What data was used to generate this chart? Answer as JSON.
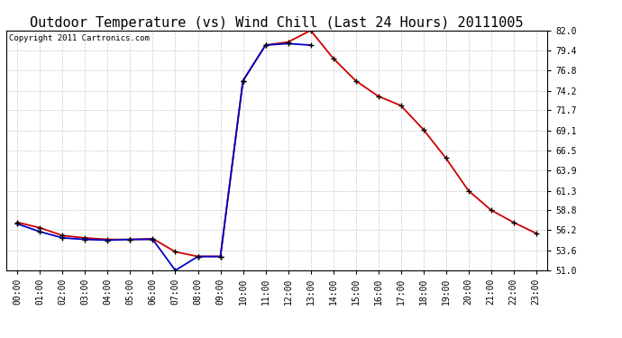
{
  "title": "Outdoor Temperature (vs) Wind Chill (Last 24 Hours) 20111005",
  "copyright": "Copyright 2011 Cartronics.com",
  "hours": [
    "00:00",
    "01:00",
    "02:00",
    "03:00",
    "04:00",
    "05:00",
    "06:00",
    "07:00",
    "08:00",
    "09:00",
    "10:00",
    "11:00",
    "12:00",
    "13:00",
    "14:00",
    "15:00",
    "16:00",
    "17:00",
    "18:00",
    "19:00",
    "20:00",
    "21:00",
    "22:00",
    "23:00"
  ],
  "temp": [
    57.2,
    56.5,
    55.5,
    55.2,
    55.0,
    55.0,
    55.1,
    53.4,
    52.8,
    52.8,
    75.5,
    80.1,
    80.5,
    82.0,
    78.4,
    75.5,
    73.5,
    72.3,
    69.2,
    65.5,
    61.3,
    58.8,
    57.2,
    55.8
  ],
  "windchill": [
    57.0,
    56.0,
    55.2,
    55.0,
    54.9,
    55.0,
    55.0,
    51.0,
    52.8,
    52.8,
    75.5,
    80.1,
    80.3,
    80.1,
    null,
    null,
    null,
    null,
    null,
    null,
    null,
    null,
    null,
    null
  ],
  "temp_color": "#cc0000",
  "windchill_color": "#0000cc",
  "bg_color": "#ffffff",
  "grid_color": "#bbbbbb",
  "ylim": [
    51.0,
    82.0
  ],
  "yticks": [
    51.0,
    53.6,
    56.2,
    58.8,
    61.3,
    63.9,
    66.5,
    69.1,
    71.7,
    74.2,
    76.8,
    79.4,
    82.0
  ],
  "title_fontsize": 11,
  "copyright_fontsize": 6.5,
  "tick_fontsize": 7,
  "marker": "+",
  "marker_color": "#000000",
  "marker_size": 5,
  "linewidth": 1.3
}
